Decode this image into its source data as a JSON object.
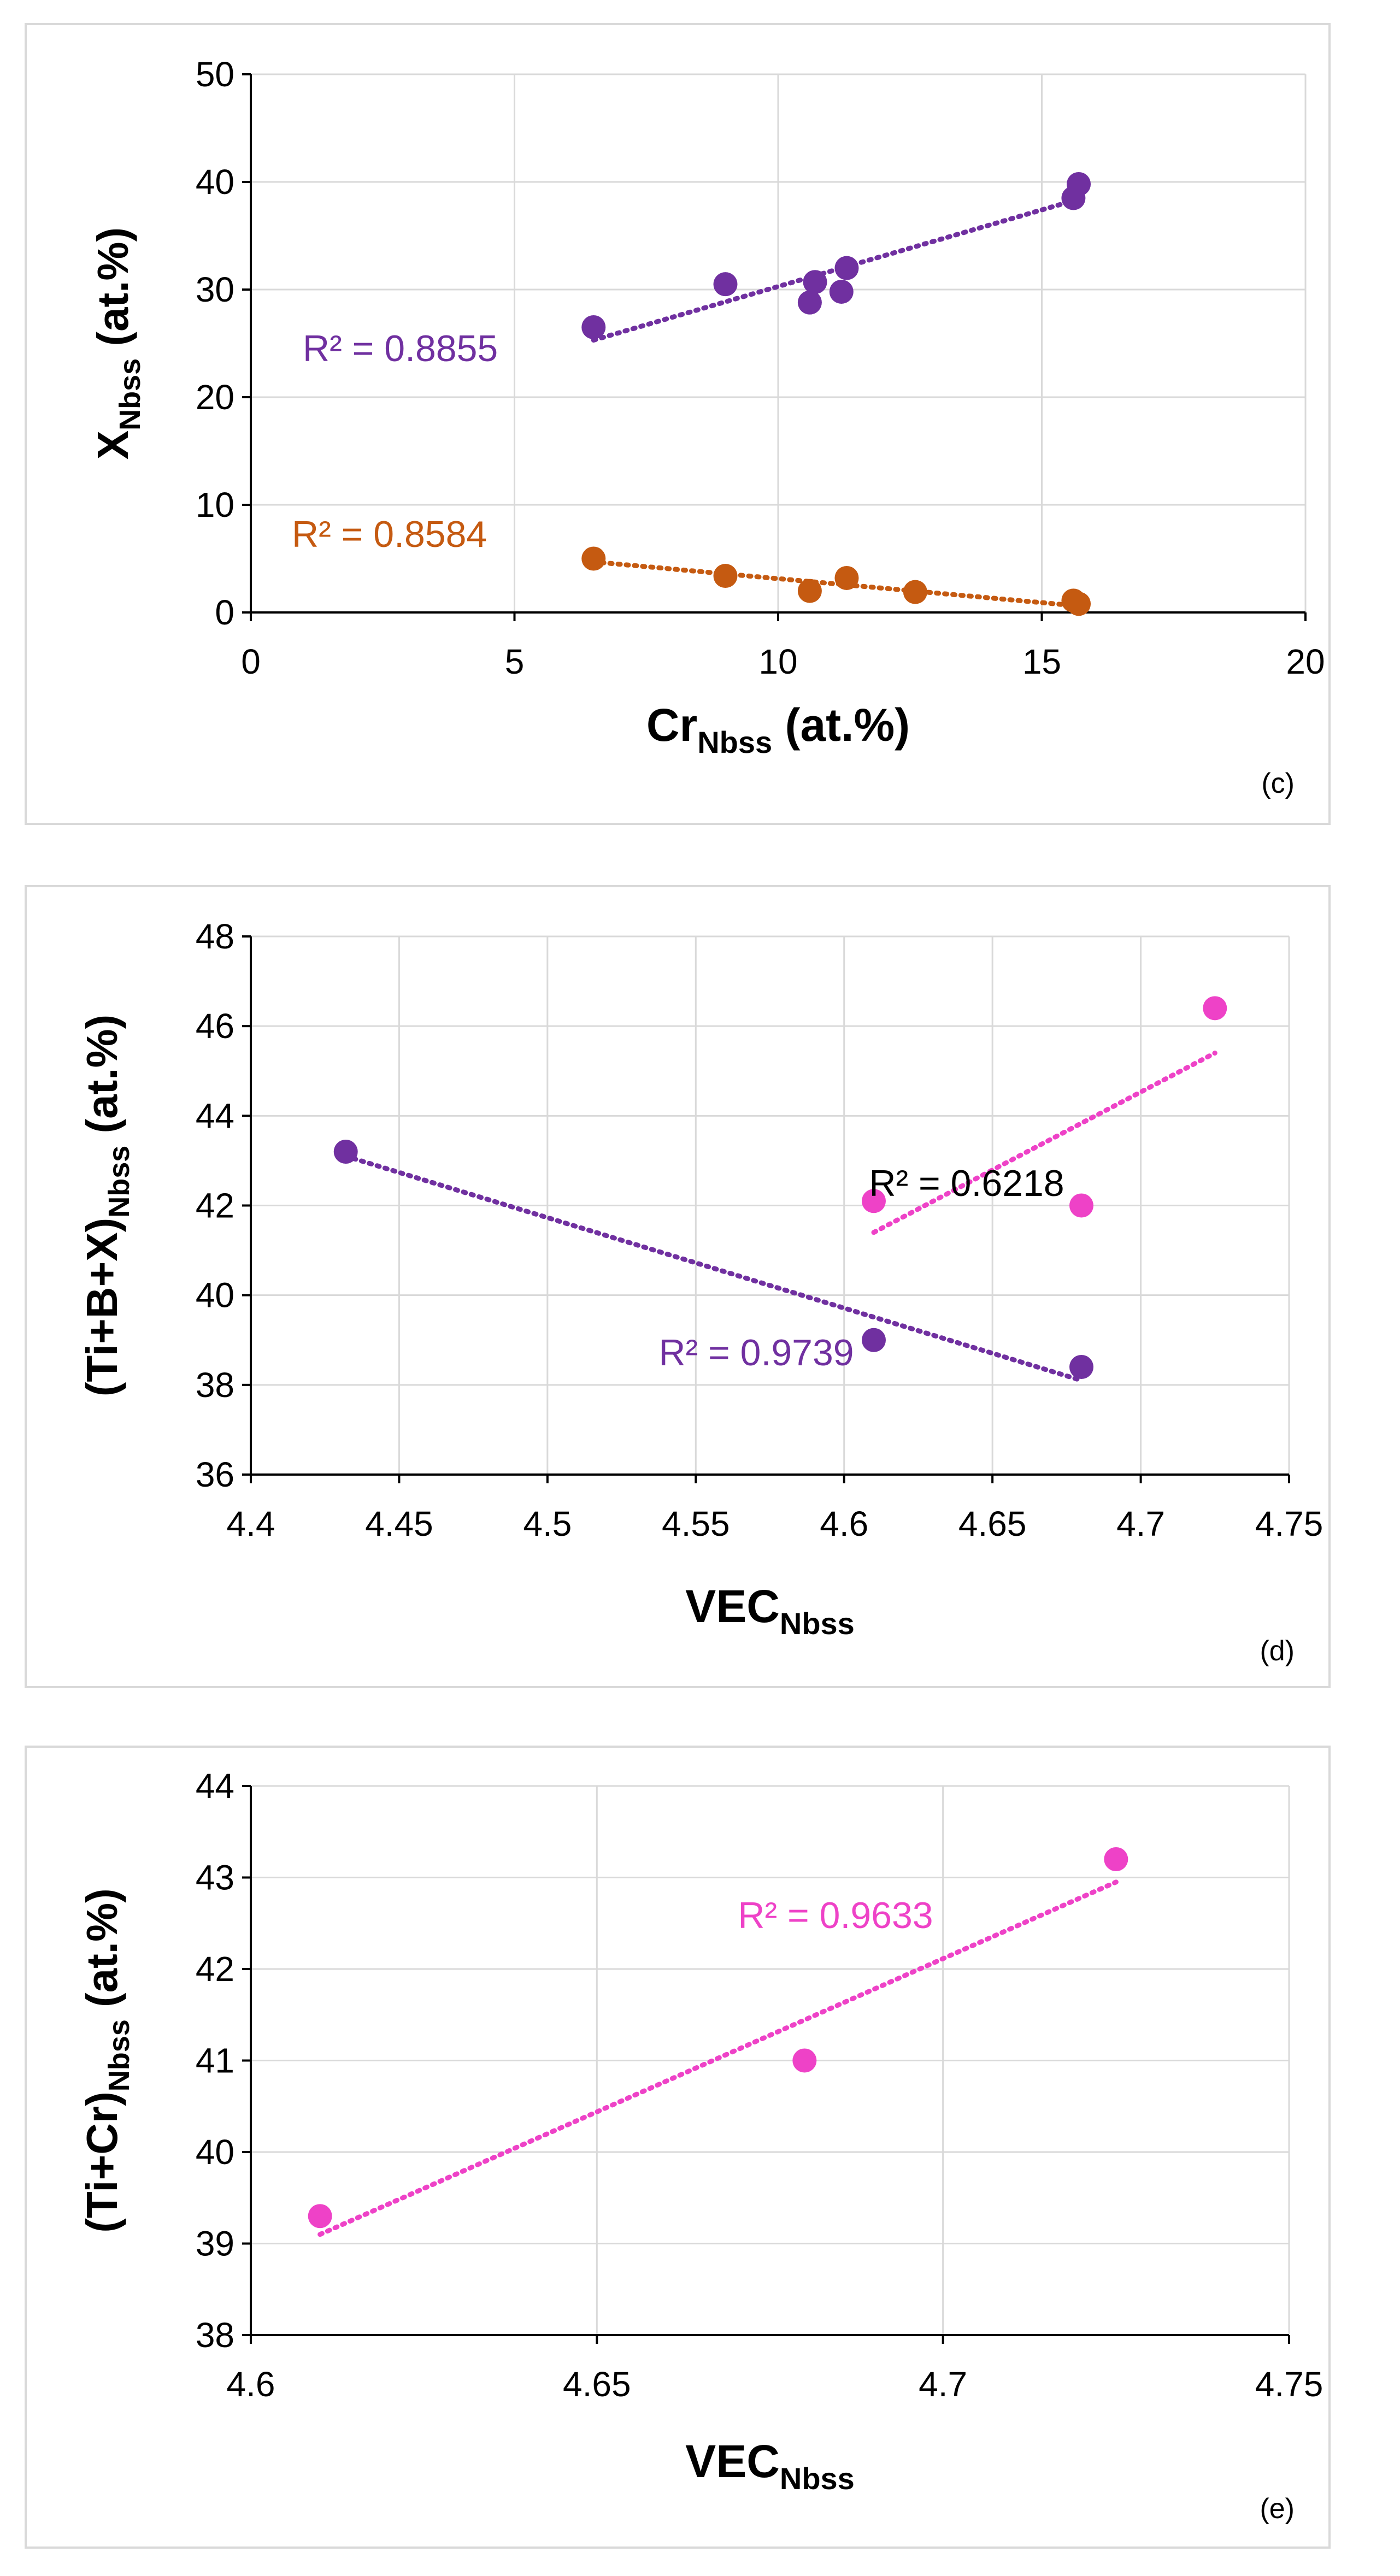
{
  "chart_data": [
    {
      "type": "scatter",
      "panel_label": "(c)",
      "xlabel": {
        "main": "Cr",
        "sub": "Nbss",
        "suffix": " (at.%)"
      },
      "ylabel": {
        "main": "X",
        "sub": "Nbss",
        "suffix": " (at.%)"
      },
      "xlim": [
        0,
        20
      ],
      "ylim": [
        0,
        50
      ],
      "xticks": [
        0,
        5,
        10,
        15,
        20
      ],
      "yticks": [
        0,
        10,
        20,
        30,
        40,
        50
      ],
      "series": [
        {
          "name": "upper",
          "color": "#7030a0",
          "points": [
            [
              6.5,
              26.5
            ],
            [
              9.0,
              30.5
            ],
            [
              10.6,
              28.8
            ],
            [
              10.7,
              30.7
            ],
            [
              11.2,
              29.8
            ],
            [
              11.3,
              32.0
            ],
            [
              15.6,
              38.5
            ],
            [
              15.7,
              39.8
            ]
          ],
          "trend": [
            [
              6.5,
              25.3
            ],
            [
              15.7,
              38.4
            ]
          ],
          "r2_label": "R² = 0.8855"
        },
        {
          "name": "lower",
          "color": "#c55a11",
          "points": [
            [
              6.5,
              5.0
            ],
            [
              9.0,
              3.4
            ],
            [
              10.6,
              2.0
            ],
            [
              11.3,
              3.2
            ],
            [
              12.6,
              1.9
            ],
            [
              15.6,
              1.1
            ],
            [
              15.7,
              0.8
            ]
          ],
          "trend": [
            [
              6.5,
              4.7
            ],
            [
              15.7,
              0.6
            ]
          ],
          "r2_label": "R² = 0.8584"
        }
      ]
    },
    {
      "type": "scatter",
      "panel_label": "(d)",
      "xlabel": {
        "main": "VEC",
        "sub": "Nbss",
        "suffix": ""
      },
      "ylabel": {
        "main": "(Ti+B+X)",
        "sub": "Nbss",
        "suffix": " (at.%)"
      },
      "xlim": [
        4.4,
        4.75
      ],
      "ylim": [
        36,
        48
      ],
      "xticks": [
        "4.4",
        "4.45",
        "4.5",
        "4.55",
        "4.6",
        "4.65",
        "4.7",
        "4.75"
      ],
      "yticks": [
        36,
        38,
        40,
        42,
        44,
        46,
        48
      ],
      "series": [
        {
          "name": "purple",
          "color": "#7030a0",
          "points": [
            [
              4.432,
              43.2
            ],
            [
              4.61,
              39.0
            ],
            [
              4.68,
              38.4
            ]
          ],
          "trend": [
            [
              4.432,
              43.1
            ],
            [
              4.68,
              38.1
            ]
          ],
          "r2_label": "R² = 0.9739"
        },
        {
          "name": "pink",
          "color": "#ee42c7",
          "points": [
            [
              4.61,
              42.1
            ],
            [
              4.68,
              42.0
            ],
            [
              4.725,
              46.4
            ]
          ],
          "trend": [
            [
              4.61,
              41.4
            ],
            [
              4.725,
              45.4
            ]
          ],
          "r2_label": "R² = 0.6218"
        }
      ]
    },
    {
      "type": "scatter",
      "panel_label": "(e)",
      "xlabel": {
        "main": "VEC",
        "sub": "Nbss",
        "suffix": ""
      },
      "ylabel": {
        "main": "(Ti+Cr)",
        "sub": "Nbss",
        "suffix": " (at.%)"
      },
      "xlim": [
        4.6,
        4.75
      ],
      "ylim": [
        38,
        44
      ],
      "xticks": [
        "4.6",
        "4.65",
        "4.7",
        "4.75"
      ],
      "yticks": [
        38,
        39,
        40,
        41,
        42,
        43,
        44
      ],
      "series": [
        {
          "name": "pink",
          "color": "#ee42c7",
          "points": [
            [
              4.61,
              39.3
            ],
            [
              4.68,
              41.0
            ],
            [
              4.725,
              43.2
            ]
          ],
          "trend": [
            [
              4.61,
              39.1
            ],
            [
              4.725,
              42.95
            ]
          ],
          "r2_label": "R² = 0.9633"
        }
      ]
    }
  ]
}
